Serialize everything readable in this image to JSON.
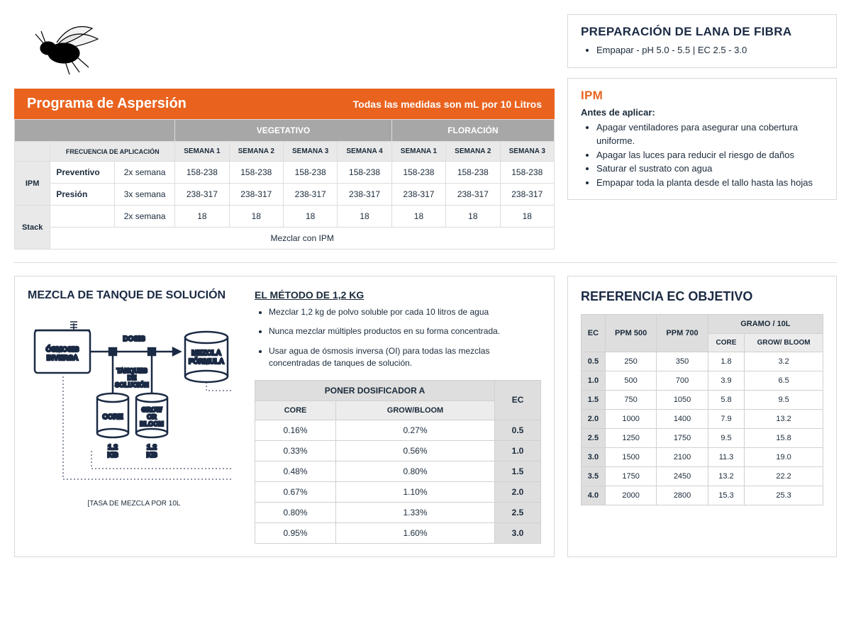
{
  "colors": {
    "orange": "#e9631f",
    "grey_header": "#a7a7a7",
    "grey_light": "#e9e9e9",
    "grey_mid": "#dedede",
    "border": "#d8d8d8",
    "text": "#1b2a44",
    "white": "#ffffff"
  },
  "spray": {
    "title": "Programa de Aspersión",
    "subtitle": "Todas las medidas son mL por 10 Litros",
    "phase1": "VEGETATIVO",
    "phase2": "FLORACIÓN",
    "freq_header": "FRECUENCIA DE APLICACIÓN",
    "weeks_veg": [
      "SEMANA 1",
      "SEMANA 2",
      "SEMANA 3",
      "SEMANA 4"
    ],
    "weeks_flo": [
      "SEMANA 1",
      "SEMANA 2",
      "SEMANA 3"
    ],
    "rows": {
      "ipm_label": "IPM",
      "preventivo": {
        "label": "Preventivo",
        "freq": "2x semana",
        "vals": [
          "158-238",
          "158-238",
          "158-238",
          "158-238",
          "158-238",
          "158-238",
          "158-238"
        ]
      },
      "presion": {
        "label": "Presión",
        "freq": "3x semana",
        "vals": [
          "238-317",
          "238-317",
          "238-317",
          "238-317",
          "238-317",
          "238-317",
          "238-317"
        ]
      },
      "stack_label": "Stack",
      "stack": {
        "label": "",
        "freq": "2x semana",
        "vals": [
          "18",
          "18",
          "18",
          "18",
          "18",
          "18",
          "18"
        ]
      },
      "mix_note": "Mezclar con IPM"
    }
  },
  "prep": {
    "title": "PREPARACIÓN DE LANA DE FIBRA",
    "item": "Empapar  - pH 5.0 - 5.5  | EC 2.5 - 3.0"
  },
  "ipm": {
    "title": "IPM",
    "subtitle": "Antes de aplicar:",
    "items": [
      "Apagar ventiladores para asegurar una cobertura uniforme.",
      "Apagar las luces para reducir el riesgo de daños",
      "Saturar el sustrato con agua",
      "Empapar toda la planta desde el tallo hasta las hojas"
    ]
  },
  "tank": {
    "title": "MEZCLA DE TANQUE DE SOLUCIÓN",
    "diagram": {
      "osmosis": "ÓSMOSIS INVERSA",
      "dosis": "DOSIS",
      "mezcla": "MEZCLA FÓRMULA",
      "tanques": "TANQUES DE SOLUCIÓN",
      "core": "CORE",
      "grow": "GROW OR BLOOM",
      "kg": "1.2 KG",
      "rate": "[TASA DE MEZCLA POR 10L"
    },
    "method_title": "EL MÉTODO DE 1,2 KG",
    "method_items": [
      "Mezclar 1,2 kg de polvo soluble por cada 10 litros de agua",
      "Nunca mezclar múltiples productos en su forma concentrada.",
      "Usar agua de ósmosis inversa (OI)  para todas las mezclas concentradas de tanques de solución."
    ],
    "doser": {
      "header": "PONER DOSIFICADOR A",
      "core": "CORE",
      "grow": "GROW/BLOOM",
      "ec": "EC",
      "rows": [
        {
          "core": "0.16%",
          "grow": "0.27%",
          "ec": "0.5"
        },
        {
          "core": "0.33%",
          "grow": "0.56%",
          "ec": "1.0"
        },
        {
          "core": "0.48%",
          "grow": "0.80%",
          "ec": "1.5"
        },
        {
          "core": "0.67%",
          "grow": "1.10%",
          "ec": "2.0"
        },
        {
          "core": "0.80%",
          "grow": "1.33%",
          "ec": "2.5"
        },
        {
          "core": "0.95%",
          "grow": "1.60%",
          "ec": "3.0"
        }
      ]
    }
  },
  "ref": {
    "title": "REFERENCIA EC OBJETIVO",
    "headers": {
      "ec": "EC",
      "ppm500": "PPM 500",
      "ppm700": "PPM 700",
      "gramo": "GRAMO / 10L",
      "core": "CORE",
      "grow": "GROW/ BLOOM"
    },
    "rows": [
      {
        "ec": "0.5",
        "p5": "250",
        "p7": "350",
        "c": "1.8",
        "g": "3.2"
      },
      {
        "ec": "1.0",
        "p5": "500",
        "p7": "700",
        "c": "3.9",
        "g": "6.5"
      },
      {
        "ec": "1.5",
        "p5": "750",
        "p7": "1050",
        "c": "5.8",
        "g": "9.5"
      },
      {
        "ec": "2.0",
        "p5": "1000",
        "p7": "1400",
        "c": "7.9",
        "g": "13.2"
      },
      {
        "ec": "2.5",
        "p5": "1250",
        "p7": "1750",
        "c": "9.5",
        "g": "15.8"
      },
      {
        "ec": "3.0",
        "p5": "1500",
        "p7": "2100",
        "c": "11.3",
        "g": "19.0"
      },
      {
        "ec": "3.5",
        "p5": "1750",
        "p7": "2450",
        "c": "13.2",
        "g": "22.2"
      },
      {
        "ec": "4.0",
        "p5": "2000",
        "p7": "2800",
        "c": "15.3",
        "g": "25.3"
      }
    ]
  }
}
